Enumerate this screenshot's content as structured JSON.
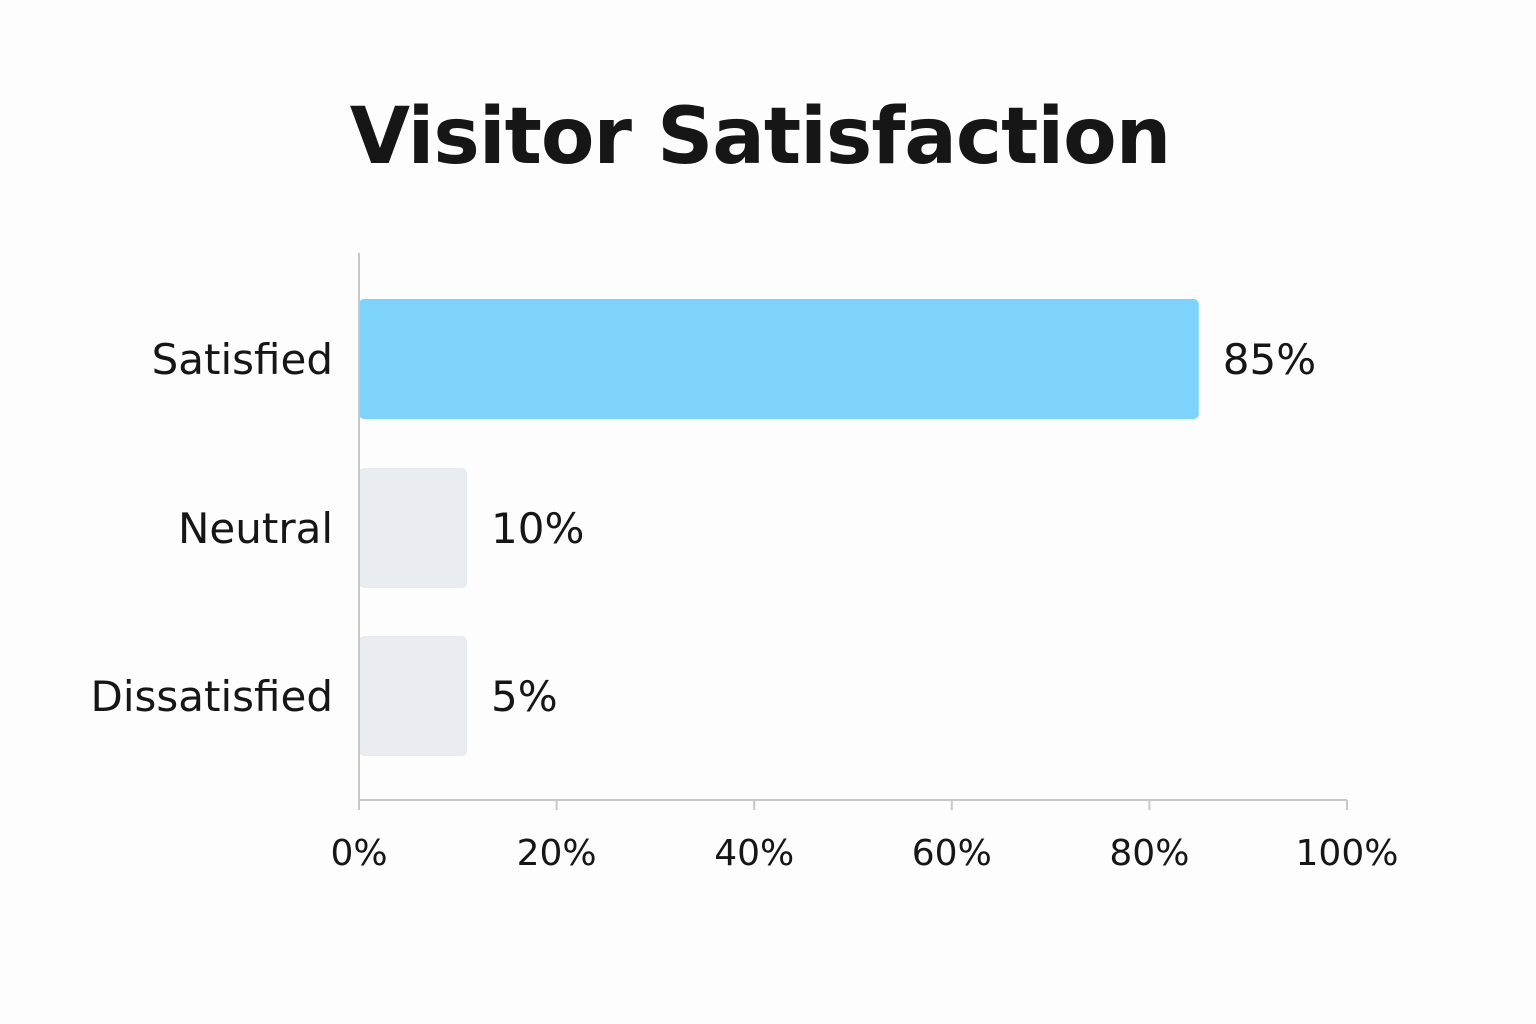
{
  "chart_data": {
    "type": "bar",
    "orientation": "horizontal",
    "title": "Visitor Satisfaction",
    "categories": [
      "Satisfied",
      "Neutral",
      "Dissatisfied"
    ],
    "values": [
      85,
      10,
      5
    ],
    "value_labels": [
      "85%",
      "10%",
      "5%"
    ],
    "xlim": [
      0,
      100
    ],
    "x_ticks": [
      0,
      20,
      40,
      60,
      80,
      100
    ],
    "x_tick_labels": [
      "0%",
      "20%",
      "40%",
      "60%",
      "80%",
      "100%"
    ],
    "xlabel": "",
    "ylabel": "",
    "grid": false,
    "legend": "none",
    "colors": {
      "highlight": "#7dd3fc",
      "muted": "#e8ebef",
      "axis": "#c8c8c8",
      "text": "#161616"
    },
    "bar_colors": [
      "#7dd3fc",
      "#e8ebef",
      "#e8ebef"
    ]
  }
}
